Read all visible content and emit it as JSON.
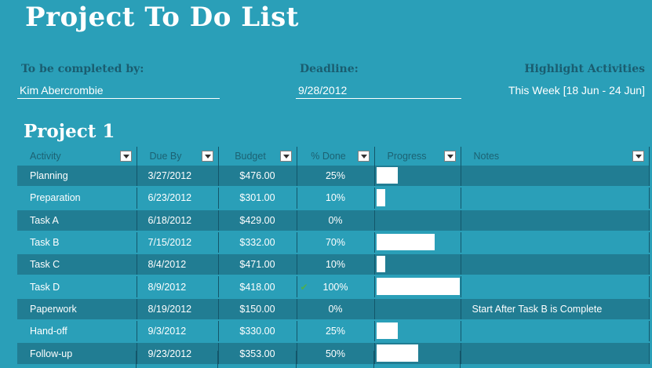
{
  "title": "Project To Do List",
  "header": {
    "completed_by_label": "To be completed by:",
    "completed_by_value": "Kim Abercrombie",
    "deadline_label": "Deadline:",
    "deadline_value": "9/28/2012",
    "highlight_label": "Highlight Activities",
    "highlight_value": "This Week [18 Jun - 24 Jun]"
  },
  "section_title": "Project 1",
  "columns": [
    "Activity",
    "Due By",
    "Budget",
    "% Done",
    "Progress",
    "Notes"
  ],
  "colors": {
    "background": "#2a9fb8",
    "row_dark": "#217d93",
    "label_dark": "#1a5d70",
    "check": "#4caf50"
  },
  "rows": [
    {
      "activity": "Planning",
      "due": "3/27/2012",
      "budget": "$476.00",
      "done": "25%",
      "progress": 0.25,
      "check": "",
      "notes": ""
    },
    {
      "activity": "Preparation",
      "due": "6/23/2012",
      "budget": "$301.00",
      "done": "10%",
      "progress": 0.1,
      "check": "",
      "notes": ""
    },
    {
      "activity": "Task A",
      "due": "6/18/2012",
      "budget": "$429.00",
      "done": "0%",
      "progress": 0.0,
      "check": "",
      "notes": ""
    },
    {
      "activity": "Task B",
      "due": "7/15/2012",
      "budget": "$332.00",
      "done": "70%",
      "progress": 0.7,
      "check": "",
      "notes": ""
    },
    {
      "activity": "Task C",
      "due": "8/4/2012",
      "budget": "$471.00",
      "done": "10%",
      "progress": 0.1,
      "check": "",
      "notes": ""
    },
    {
      "activity": "Task D",
      "due": "8/9/2012",
      "budget": "$418.00",
      "done": "100%",
      "progress": 1.0,
      "check": "✔",
      "notes": ""
    },
    {
      "activity": "Paperwork",
      "due": "8/19/2012",
      "budget": "$150.00",
      "done": "0%",
      "progress": 0.0,
      "check": "",
      "notes": "Start After Task B is Complete"
    },
    {
      "activity": "Hand-off",
      "due": "9/3/2012",
      "budget": "$330.00",
      "done": "25%",
      "progress": 0.25,
      "check": "",
      "notes": ""
    },
    {
      "activity": "Follow-up",
      "due": "9/23/2012",
      "budget": "$353.00",
      "done": "50%",
      "progress": 0.5,
      "check": "",
      "notes": ""
    }
  ]
}
